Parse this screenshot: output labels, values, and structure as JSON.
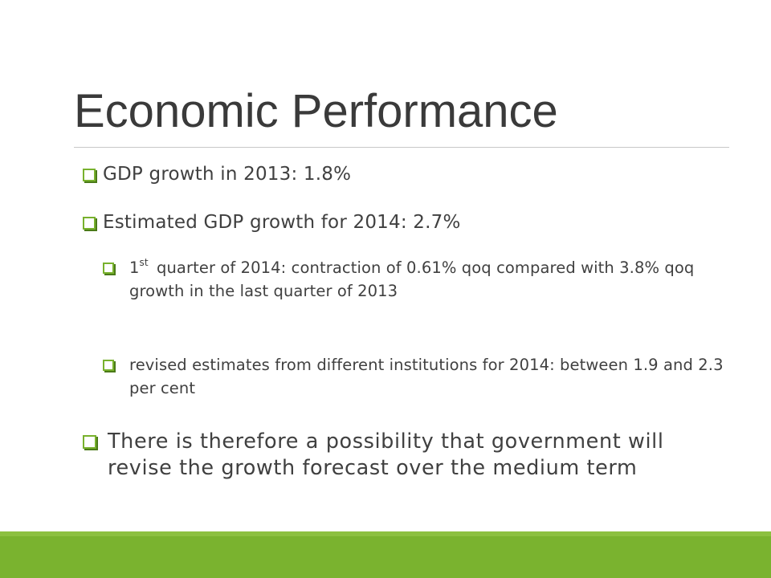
{
  "slide": {
    "title": "Economic Performance",
    "bullets": [
      {
        "text": "GDP growth in 2013: 1.8%"
      },
      {
        "text": "Estimated GDP growth for 2014: 2.7%"
      }
    ],
    "sub_bullets": [
      {
        "num": "1",
        "sup": "st",
        "text": "quarter of 2014: contraction of 0.61% qoq compared with 3.8% qoq  growth in the last quarter of 2013"
      },
      {
        "text": "revised estimates from different institutions for 2014: between 1.9 and 2.3 per cent"
      }
    ],
    "conclusion": "There is therefore a possibility that government will revise the growth forecast over the medium term"
  },
  "colors": {
    "accent": "#7ab32f",
    "title": "#3a3a3a",
    "body": "#404040"
  },
  "icons": {
    "bullet": "hollow-square-icon"
  }
}
